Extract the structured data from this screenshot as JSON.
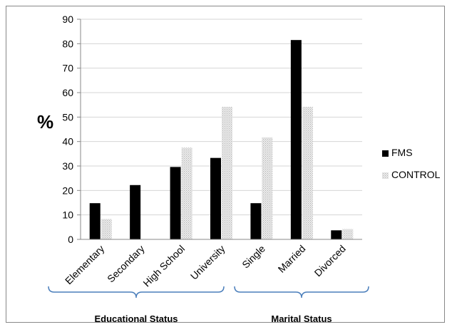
{
  "chart_data": {
    "type": "bar",
    "title": "",
    "xlabel": "",
    "ylabel": "%",
    "ylim": [
      0,
      90
    ],
    "yticks": [
      0,
      10,
      20,
      30,
      40,
      50,
      60,
      70,
      80,
      90
    ],
    "grid": true,
    "legend_position": "right",
    "categories": [
      "Elementary",
      "Secondary",
      "High School",
      "University",
      "Single",
      "Married",
      "Divorced"
    ],
    "series": [
      {
        "name": "FMS",
        "color": "#000000",
        "values": [
          14.8,
          22.2,
          29.6,
          33.3,
          14.8,
          81.5,
          3.7
        ]
      },
      {
        "name": "CONTROL",
        "color": "#d9d9d9",
        "values": [
          8.3,
          0,
          37.5,
          54.2,
          41.7,
          54.2,
          4.2
        ]
      }
    ],
    "groups": [
      {
        "label": "Educational Status",
        "categories": [
          "Elementary",
          "Secondary",
          "High School",
          "University"
        ]
      },
      {
        "label": "Marital Status",
        "categories": [
          "Single",
          "Married",
          "Divorced"
        ]
      }
    ],
    "colors": {
      "bracket": "#4a7ebb",
      "grid": "#d4d4d4"
    }
  }
}
